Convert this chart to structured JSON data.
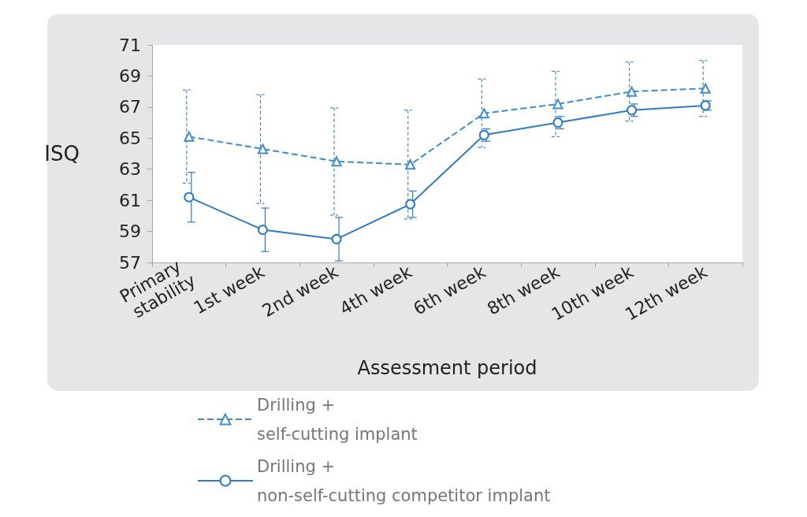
{
  "chart_data": {
    "type": "line",
    "categories": [
      "Primary stability",
      "1st week",
      "2nd week",
      "4th week",
      "6th week",
      "8th week",
      "10th week",
      "12th week"
    ],
    "xlabel": "Assessment period",
    "ylabel": "ISQ",
    "ylim": [
      57,
      71
    ],
    "yticks": [
      57,
      59,
      61,
      63,
      65,
      67,
      69,
      71
    ],
    "grid": false,
    "legend": "bottom",
    "series": [
      {
        "name": "Drilling +\nself-cutting implant",
        "color": "#3f8bd2",
        "marker": "triangle",
        "line_style": "dashed",
        "values": [
          65.1,
          64.3,
          63.5,
          63.3,
          66.6,
          67.2,
          68.0,
          68.2
        ],
        "errors": [
          3.0,
          3.5,
          3.45,
          3.5,
          2.2,
          2.1,
          1.9,
          1.8
        ]
      },
      {
        "name": "Drilling +\nnon-self-cutting competitor implant",
        "color": "#2f7bc6",
        "marker": "circle",
        "line_style": "solid",
        "values": [
          61.2,
          59.1,
          58.5,
          60.75,
          65.2,
          66.0,
          66.8,
          67.1
        ],
        "errors": [
          1.6,
          1.4,
          1.4,
          0.85,
          0.4,
          0.4,
          0.4,
          0.3
        ]
      }
    ]
  }
}
